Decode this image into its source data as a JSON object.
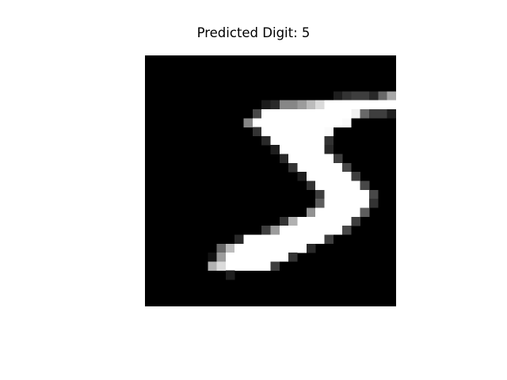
{
  "title": "Predicted Digit: 5",
  "image": {
    "colormap": "gray",
    "background": "#000000",
    "grid_size": [
      28,
      28
    ],
    "row_offset": 4,
    "col_offset": 3,
    "pixels": [
      "..................acddbhnh7.",
      "..........9bkkmpswwwwwwwwo.",
      ".........ewwwwwwwwwwxhdda...",
      "........kwwwwwwwwwwv........",
      ".........cwwwwwwwv..........",
      "..........bwwwwwwc..........",
      "...........awwwwwb..........",
      "............bwwwwwd.........",
      ".............cwwwwwe........",
      "..............awwwwwd.......",
      "...............cwwwwwe......",
      "................dwwwwwe.....",
      "................gwwwwwc.....",
      "...............lwwwwwg......",
      "............cowwwwwwd.......",
      "..........dmwwwwwwwe........",
      ".......bwwwwwwwwwd..........",
      ".....hpwwwwwwwwb............",
      "....6mwwwwwwwc..............",
      "....oswwwwwd................",
      "......a.....................",
      "...........................",
      "..........................."
    ]
  }
}
